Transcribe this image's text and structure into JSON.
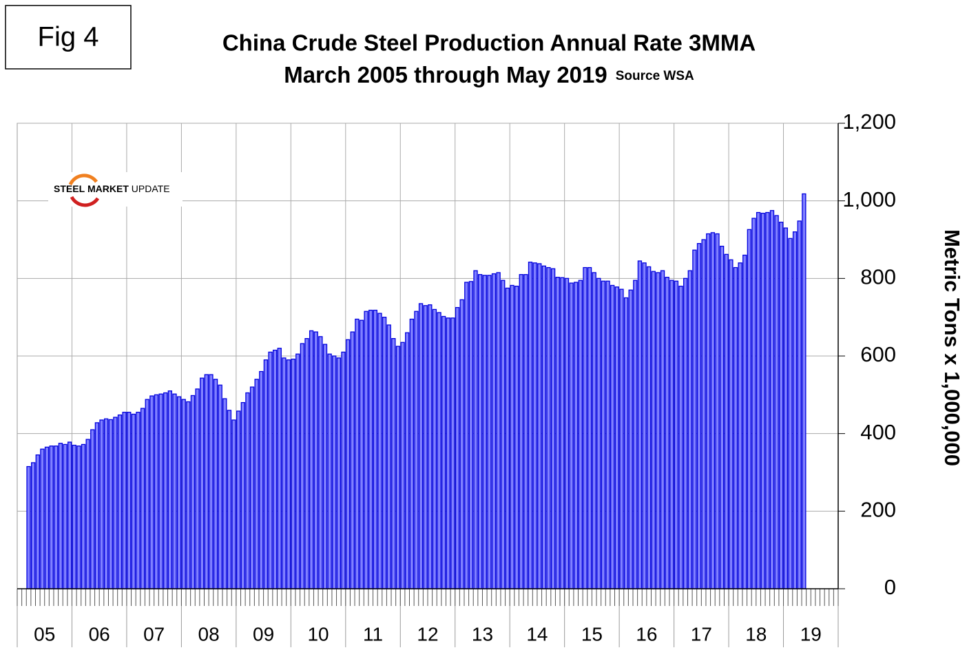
{
  "figure_label": "Fig 4",
  "logo": [
    "STEEL",
    "MARKET",
    "UPDATE"
  ],
  "chart_data": {
    "type": "bar",
    "title": "China Crude Steel Production Annual Rate 3MMA",
    "subtitle": "March 2005 through May 2019",
    "source": "Source WSA",
    "y_label": "Metric Tons x 1,000,000",
    "year_labels": [
      "05",
      "06",
      "07",
      "08",
      "09",
      "10",
      "11",
      "12",
      "13",
      "14",
      "15",
      "16",
      "17",
      "18",
      "19"
    ],
    "values": [
      null,
      null,
      315,
      325,
      345,
      360,
      365,
      368,
      368,
      375,
      372,
      378,
      370,
      368,
      372,
      385,
      410,
      428,
      435,
      438,
      436,
      442,
      448,
      455,
      455,
      450,
      455,
      465,
      488,
      497,
      500,
      502,
      505,
      510,
      502,
      495,
      488,
      482,
      498,
      515,
      543,
      552,
      552,
      540,
      525,
      490,
      460,
      435,
      458,
      480,
      505,
      520,
      540,
      560,
      590,
      610,
      615,
      620,
      595,
      590,
      592,
      605,
      632,
      645,
      665,
      662,
      650,
      630,
      605,
      600,
      595,
      610,
      642,
      662,
      695,
      692,
      715,
      718,
      718,
      710,
      700,
      680,
      645,
      625,
      635,
      660,
      695,
      715,
      735,
      730,
      732,
      720,
      712,
      702,
      698,
      698,
      725,
      745,
      790,
      792,
      820,
      810,
      808,
      808,
      812,
      815,
      795,
      775,
      782,
      780,
      810,
      810,
      842,
      840,
      838,
      832,
      828,
      825,
      803,
      802,
      800,
      788,
      790,
      795,
      828,
      828,
      815,
      800,
      793,
      793,
      782,
      778,
      772,
      750,
      770,
      795,
      845,
      840,
      830,
      818,
      815,
      820,
      803,
      795,
      793,
      780,
      800,
      820,
      873,
      890,
      900,
      915,
      918,
      915,
      883,
      862,
      848,
      828,
      840,
      860,
      926,
      955,
      970,
      968,
      970,
      975,
      962,
      945,
      930,
      903,
      920,
      948,
      1018,
      null,
      null,
      null,
      null,
      null,
      null,
      null
    ],
    "color": "#8080ff",
    "edge_color": "#0000dd",
    "ylim": [
      0,
      1200
    ],
    "yticks": [
      0,
      200,
      400,
      600,
      800,
      {
        "value": 1000,
        "label": "1,000"
      },
      {
        "value": 1200,
        "label": "1,200"
      }
    ],
    "grid": true
  }
}
